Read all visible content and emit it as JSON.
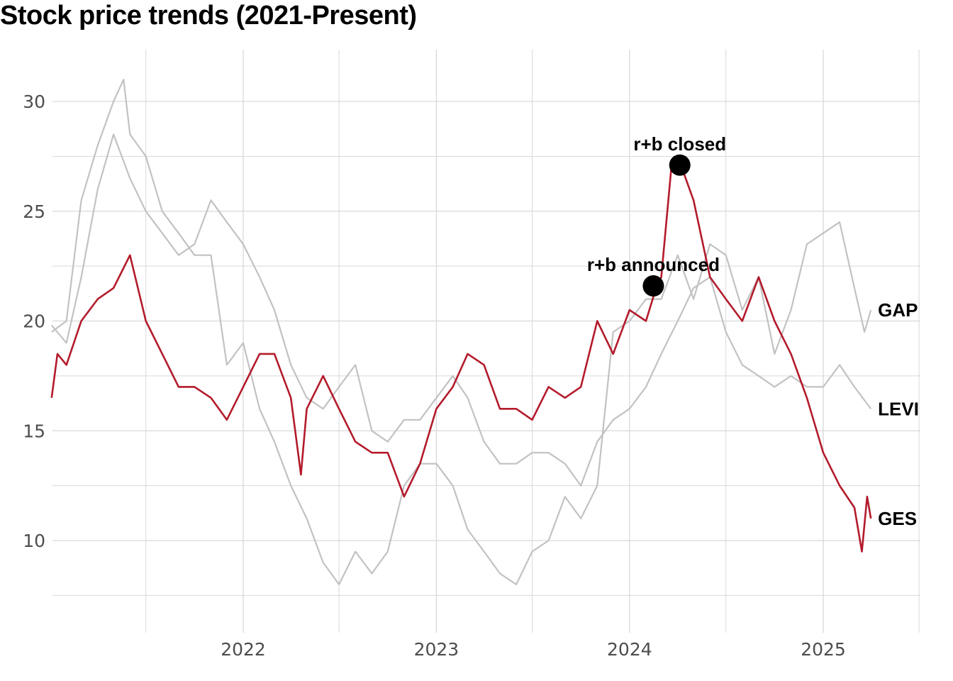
{
  "chart_data": {
    "type": "line",
    "title": "Stock price trends (2021-Present)",
    "xlabel": "",
    "ylabel": "",
    "x_range": [
      "2021-01-04",
      "2025-04-21"
    ],
    "ylim": [
      6,
      32
    ],
    "y_ticks": [
      10,
      15,
      20,
      25,
      30
    ],
    "x_ticks": [
      {
        "label": "2022",
        "date": "2022-01-01"
      },
      {
        "label": "2023",
        "date": "2023-01-01"
      },
      {
        "label": "2024",
        "date": "2024-01-01"
      },
      {
        "label": "2025",
        "date": "2025-01-01"
      }
    ],
    "minor_x_grid": [
      "2021-07-01",
      "2022-07-01",
      "2023-07-01",
      "2024-07-01",
      "2025-07-01"
    ],
    "minor_y_grid": [
      7.5,
      12.5,
      17.5,
      22.5,
      27.5
    ],
    "grid": true,
    "legend": "none (direct labels at line ends)",
    "colors": {
      "highlight": "#b31b2b",
      "context": "#c2c2c2",
      "grid": "#d9d9d9"
    },
    "series": [
      {
        "name": "GAP",
        "color": "#c2c2c2",
        "highlight": false,
        "points": [
          [
            "2021-01-04",
            19.5
          ],
          [
            "2021-02-01",
            20.0
          ],
          [
            "2021-03-01",
            25.5
          ],
          [
            "2021-04-01",
            28.0
          ],
          [
            "2021-05-01",
            30.0
          ],
          [
            "2021-05-20",
            31.0
          ],
          [
            "2021-06-01",
            28.5
          ],
          [
            "2021-07-01",
            27.5
          ],
          [
            "2021-08-01",
            25.0
          ],
          [
            "2021-09-01",
            24.0
          ],
          [
            "2021-10-01",
            23.0
          ],
          [
            "2021-11-01",
            23.0
          ],
          [
            "2021-12-01",
            18.0
          ],
          [
            "2022-01-01",
            19.0
          ],
          [
            "2022-02-01",
            16.0
          ],
          [
            "2022-03-01",
            14.5
          ],
          [
            "2022-04-01",
            12.5
          ],
          [
            "2022-05-01",
            11.0
          ],
          [
            "2022-06-01",
            9.0
          ],
          [
            "2022-07-01",
            8.0
          ],
          [
            "2022-08-01",
            9.5
          ],
          [
            "2022-09-01",
            8.5
          ],
          [
            "2022-10-01",
            9.5
          ],
          [
            "2022-11-01",
            12.5
          ],
          [
            "2022-12-01",
            13.5
          ],
          [
            "2023-01-01",
            13.5
          ],
          [
            "2023-02-01",
            12.5
          ],
          [
            "2023-03-01",
            10.5
          ],
          [
            "2023-04-01",
            9.5
          ],
          [
            "2023-05-01",
            8.5
          ],
          [
            "2023-06-01",
            8.0
          ],
          [
            "2023-07-01",
            9.5
          ],
          [
            "2023-08-01",
            10.0
          ],
          [
            "2023-09-01",
            12.0
          ],
          [
            "2023-10-01",
            11.0
          ],
          [
            "2023-11-01",
            12.5
          ],
          [
            "2023-12-01",
            19.5
          ],
          [
            "2024-01-01",
            20.0
          ],
          [
            "2024-02-01",
            21.0
          ],
          [
            "2024-03-01",
            21.0
          ],
          [
            "2024-04-01",
            23.0
          ],
          [
            "2024-05-01",
            21.0
          ],
          [
            "2024-06-01",
            23.5
          ],
          [
            "2024-07-01",
            23.0
          ],
          [
            "2024-08-01",
            20.5
          ],
          [
            "2024-09-01",
            22.0
          ],
          [
            "2024-10-01",
            18.5
          ],
          [
            "2024-11-01",
            20.5
          ],
          [
            "2024-12-01",
            23.5
          ],
          [
            "2025-01-01",
            24.0
          ],
          [
            "2025-02-01",
            24.5
          ],
          [
            "2025-03-01",
            21.5
          ],
          [
            "2025-03-20",
            19.5
          ],
          [
            "2025-04-01",
            20.5
          ]
        ]
      },
      {
        "name": "LEVI",
        "color": "#c2c2c2",
        "highlight": false,
        "points": [
          [
            "2021-01-04",
            19.8
          ],
          [
            "2021-02-01",
            19.0
          ],
          [
            "2021-03-01",
            22.0
          ],
          [
            "2021-04-01",
            26.0
          ],
          [
            "2021-05-01",
            28.5
          ],
          [
            "2021-06-01",
            26.5
          ],
          [
            "2021-07-01",
            25.0
          ],
          [
            "2021-08-01",
            24.0
          ],
          [
            "2021-09-01",
            23.0
          ],
          [
            "2021-10-01",
            23.5
          ],
          [
            "2021-11-01",
            25.5
          ],
          [
            "2021-12-01",
            24.5
          ],
          [
            "2022-01-01",
            23.5
          ],
          [
            "2022-02-01",
            22.0
          ],
          [
            "2022-03-01",
            20.5
          ],
          [
            "2022-04-01",
            18.0
          ],
          [
            "2022-05-01",
            16.5
          ],
          [
            "2022-06-01",
            16.0
          ],
          [
            "2022-07-01",
            17.0
          ],
          [
            "2022-08-01",
            18.0
          ],
          [
            "2022-09-01",
            15.0
          ],
          [
            "2022-10-01",
            14.5
          ],
          [
            "2022-11-01",
            15.5
          ],
          [
            "2022-12-01",
            15.5
          ],
          [
            "2023-01-01",
            16.5
          ],
          [
            "2023-02-01",
            17.5
          ],
          [
            "2023-03-01",
            16.5
          ],
          [
            "2023-04-01",
            14.5
          ],
          [
            "2023-05-01",
            13.5
          ],
          [
            "2023-06-01",
            13.5
          ],
          [
            "2023-07-01",
            14.0
          ],
          [
            "2023-08-01",
            14.0
          ],
          [
            "2023-09-01",
            13.5
          ],
          [
            "2023-10-01",
            12.5
          ],
          [
            "2023-11-01",
            14.5
          ],
          [
            "2023-12-01",
            15.5
          ],
          [
            "2024-01-01",
            16.0
          ],
          [
            "2024-02-01",
            17.0
          ],
          [
            "2024-03-01",
            18.5
          ],
          [
            "2024-04-01",
            20.0
          ],
          [
            "2024-05-01",
            21.5
          ],
          [
            "2024-06-01",
            22.0
          ],
          [
            "2024-07-01",
            19.5
          ],
          [
            "2024-08-01",
            18.0
          ],
          [
            "2024-09-01",
            17.5
          ],
          [
            "2024-10-01",
            17.0
          ],
          [
            "2024-11-01",
            17.5
          ],
          [
            "2024-12-01",
            17.0
          ],
          [
            "2025-01-01",
            17.0
          ],
          [
            "2025-02-01",
            18.0
          ],
          [
            "2025-03-01",
            17.0
          ],
          [
            "2025-04-01",
            16.0
          ]
        ]
      },
      {
        "name": "GES",
        "color": "#b31b2b",
        "highlight": true,
        "points": [
          [
            "2021-01-04",
            16.5
          ],
          [
            "2021-01-15",
            18.5
          ],
          [
            "2021-02-01",
            18.0
          ],
          [
            "2021-03-01",
            20.0
          ],
          [
            "2021-04-01",
            21.0
          ],
          [
            "2021-05-01",
            21.5
          ],
          [
            "2021-06-01",
            23.0
          ],
          [
            "2021-07-01",
            20.0
          ],
          [
            "2021-08-01",
            18.5
          ],
          [
            "2021-09-01",
            17.0
          ],
          [
            "2021-10-01",
            17.0
          ],
          [
            "2021-11-01",
            16.5
          ],
          [
            "2021-12-01",
            15.5
          ],
          [
            "2022-01-01",
            17.0
          ],
          [
            "2022-02-01",
            18.5
          ],
          [
            "2022-03-01",
            18.5
          ],
          [
            "2022-04-01",
            16.5
          ],
          [
            "2022-04-20",
            13.0
          ],
          [
            "2022-05-01",
            16.0
          ],
          [
            "2022-06-01",
            17.5
          ],
          [
            "2022-07-01",
            16.0
          ],
          [
            "2022-08-01",
            14.5
          ],
          [
            "2022-09-01",
            14.0
          ],
          [
            "2022-10-01",
            14.0
          ],
          [
            "2022-11-01",
            12.0
          ],
          [
            "2022-12-01",
            13.5
          ],
          [
            "2023-01-01",
            16.0
          ],
          [
            "2023-02-01",
            17.0
          ],
          [
            "2023-03-01",
            18.5
          ],
          [
            "2023-04-01",
            18.0
          ],
          [
            "2023-05-01",
            16.0
          ],
          [
            "2023-06-01",
            16.0
          ],
          [
            "2023-07-01",
            15.5
          ],
          [
            "2023-08-01",
            17.0
          ],
          [
            "2023-09-01",
            16.5
          ],
          [
            "2023-10-01",
            17.0
          ],
          [
            "2023-11-01",
            20.0
          ],
          [
            "2023-12-01",
            18.5
          ],
          [
            "2024-01-01",
            20.5
          ],
          [
            "2024-02-01",
            20.0
          ],
          [
            "2024-02-20",
            21.5
          ],
          [
            "2024-03-01",
            22.0
          ],
          [
            "2024-03-20",
            27.0
          ],
          [
            "2024-04-01",
            27.5
          ],
          [
            "2024-05-01",
            25.5
          ],
          [
            "2024-06-01",
            22.0
          ],
          [
            "2024-07-01",
            21.0
          ],
          [
            "2024-08-01",
            20.0
          ],
          [
            "2024-09-01",
            22.0
          ],
          [
            "2024-10-01",
            20.0
          ],
          [
            "2024-11-01",
            18.5
          ],
          [
            "2024-12-01",
            16.5
          ],
          [
            "2025-01-01",
            14.0
          ],
          [
            "2025-02-01",
            12.5
          ],
          [
            "2025-03-01",
            11.5
          ],
          [
            "2025-03-15",
            9.5
          ],
          [
            "2025-03-25",
            12.0
          ],
          [
            "2025-04-01",
            11.0
          ]
        ]
      }
    ],
    "annotations": [
      {
        "label": "r+b announced",
        "date": "2024-02-15",
        "value": 21.6
      },
      {
        "label": "r+b closed",
        "date": "2024-04-05",
        "value": 27.1
      }
    ]
  }
}
